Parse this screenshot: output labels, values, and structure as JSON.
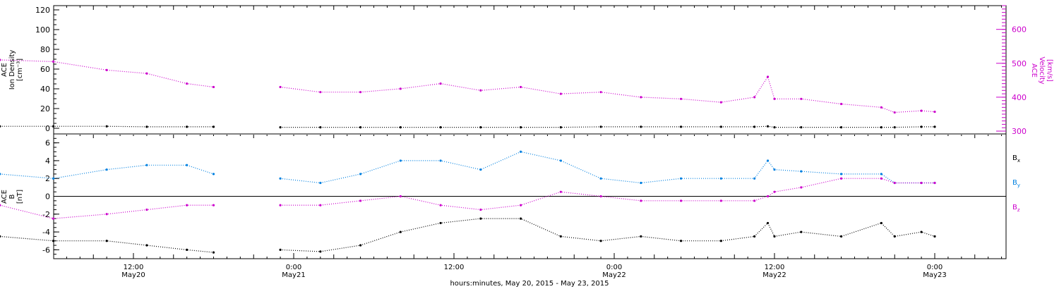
{
  "x_axis": {
    "title": "hours:minutes, May 20, 2015 - May 23, 2015",
    "ticks": [
      {
        "t": "2015-05-20T12:00",
        "time": "12:00",
        "day": "May20"
      },
      {
        "t": "2015-05-21T00:00",
        "time": "0:00",
        "day": "May21"
      },
      {
        "t": "2015-05-21T12:00",
        "time": "12:00",
        "day": ""
      },
      {
        "t": "2015-05-22T00:00",
        "time": "0:00",
        "day": "May22"
      },
      {
        "t": "2015-05-22T12:00",
        "time": "12:00",
        "day": "May22"
      },
      {
        "t": "2015-05-23T00:00",
        "time": "0:00",
        "day": "May23"
      }
    ]
  },
  "colors": {
    "black": "#000000",
    "magenta": "#cc00cc",
    "blue": "#0080e0"
  },
  "chart_data": [
    {
      "type": "scatter",
      "panel": "plasma",
      "x": [
        "2015-05-20T02:00",
        "2015-05-20T06:00",
        "2015-05-20T10:00",
        "2015-05-20T13:00",
        "2015-05-20T16:00",
        "2015-05-20T18:00",
        "2015-05-20T19:00",
        "2015-05-20T21:00",
        "2015-05-20T23:00",
        "2015-05-21T02:00",
        "2015-05-21T05:00",
        "2015-05-21T08:00",
        "2015-05-21T11:00",
        "2015-05-21T14:00",
        "2015-05-21T17:00",
        "2015-05-21T20:00",
        "2015-05-21T23:00",
        "2015-05-22T02:00",
        "2015-05-22T05:00",
        "2015-05-22T08:00",
        "2015-05-22T10:30",
        "2015-05-22T11:30",
        "2015-05-22T12:00",
        "2015-05-22T14:00",
        "2015-05-22T17:00",
        "2015-05-22T20:00",
        "2015-05-22T21:00",
        "2015-05-22T23:00",
        "2015-05-23T00:00"
      ],
      "series": [
        {
          "axis": "right",
          "values": [
            510,
            505,
            480,
            470,
            440,
            430,
            null,
            null,
            430,
            415,
            415,
            425,
            440,
            420,
            430,
            410,
            415,
            400,
            395,
            385,
            400,
            460,
            395,
            395,
            380,
            370,
            355,
            360,
            357
          ]
        },
        {
          "axis": "left",
          "values": [
            2,
            2,
            2,
            1.5,
            1.5,
            1.5,
            null,
            null,
            1,
            1,
            1,
            1,
            1,
            1,
            1,
            1,
            1.5,
            1.5,
            1.5,
            1.5,
            1.5,
            2,
            1,
            1,
            1,
            1,
            1,
            1.5,
            1.5
          ]
        }
      ],
      "left_axis": {
        "label_lines": [
          "ACE",
          "Ion Density",
          "[cm⁻³]"
        ],
        "ylim": [
          0,
          120
        ],
        "ticks": [
          0,
          20,
          40,
          60,
          80,
          100,
          120
        ]
      },
      "right_axis": {
        "label_lines": [
          "ACE",
          "Velocity",
          "[km/s]"
        ],
        "ylim": [
          300,
          670
        ],
        "ticks": [
          300,
          400,
          500,
          600
        ]
      }
    },
    {
      "type": "scatter",
      "panel": "magnetic",
      "x": [
        "2015-05-20T02:00",
        "2015-05-20T06:00",
        "2015-05-20T10:00",
        "2015-05-20T13:00",
        "2015-05-20T16:00",
        "2015-05-20T18:00",
        "2015-05-20T19:00",
        "2015-05-20T21:00",
        "2015-05-20T23:00",
        "2015-05-21T02:00",
        "2015-05-21T05:00",
        "2015-05-21T08:00",
        "2015-05-21T11:00",
        "2015-05-21T14:00",
        "2015-05-21T17:00",
        "2015-05-21T20:00",
        "2015-05-21T23:00",
        "2015-05-22T02:00",
        "2015-05-22T05:00",
        "2015-05-22T08:00",
        "2015-05-22T10:30",
        "2015-05-22T11:30",
        "2015-05-22T12:00",
        "2015-05-22T14:00",
        "2015-05-22T17:00",
        "2015-05-22T20:00",
        "2015-05-22T21:00",
        "2015-05-22T23:00",
        "2015-05-23T00:00"
      ],
      "series": [
        {
          "name": "Bx",
          "color": "#000000",
          "values": [
            -4.5,
            -5,
            -5,
            -5.5,
            -6,
            -6.3,
            null,
            null,
            -6,
            -6.2,
            -5.5,
            -4,
            -3,
            -2.5,
            -2.5,
            -4.5,
            -5,
            -4.5,
            -5,
            -5,
            -4.5,
            -3,
            -4.5,
            -4,
            -4.5,
            -3,
            -4.5,
            -4,
            -4.5
          ]
        },
        {
          "name": "By",
          "color": "#0080e0",
          "values": [
            2.5,
            2,
            3,
            3.5,
            3.5,
            2.5,
            null,
            null,
            2,
            1.5,
            2.5,
            4,
            4,
            3,
            5,
            4,
            2,
            1.5,
            2,
            2,
            2,
            4,
            3,
            2.8,
            2.5,
            2.5,
            1.5,
            1.5,
            1.5
          ]
        },
        {
          "name": "Bz",
          "color": "#cc00cc",
          "values": [
            -1,
            -2.5,
            -2,
            -1.5,
            -1,
            -1,
            null,
            null,
            -1,
            -1,
            -0.5,
            0,
            -1,
            -1.5,
            -1,
            0.5,
            0,
            -0.5,
            -0.5,
            -0.5,
            -0.5,
            0,
            0.5,
            1,
            2,
            2,
            1.5,
            1.5,
            1.5
          ]
        }
      ],
      "left_axis": {
        "label_lines": [
          "ACE",
          "B",
          "[nT]"
        ],
        "ylim": [
          -7,
          7
        ],
        "ticks": [
          -6,
          -4,
          -2,
          0,
          2,
          4,
          6
        ]
      },
      "legend": {
        "placement": "right",
        "entries": [
          {
            "base": "B",
            "sub": "x",
            "color": "#000000"
          },
          {
            "base": "B",
            "sub": "y",
            "color": "#0080e0"
          },
          {
            "base": "B",
            "sub": "z",
            "color": "#cc00cc"
          }
        ]
      }
    }
  ]
}
